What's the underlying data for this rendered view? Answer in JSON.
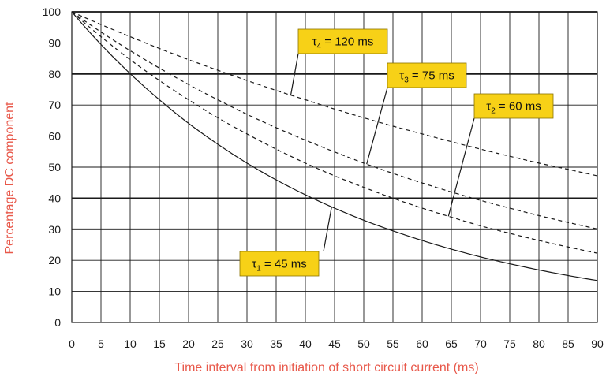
{
  "chart_data": {
    "type": "line",
    "xlabel": "Time interval from initiation of short circuit current (ms)",
    "ylabel": "Percentage DC component",
    "xlim": [
      0,
      90
    ],
    "ylim": [
      0,
      100
    ],
    "x_ticks": [
      0,
      5,
      10,
      15,
      20,
      25,
      30,
      35,
      40,
      45,
      50,
      55,
      60,
      65,
      70,
      75,
      80,
      85,
      90
    ],
    "y_ticks": [
      0,
      10,
      20,
      30,
      40,
      50,
      60,
      70,
      80,
      90,
      100
    ],
    "grid": true,
    "bold_gridlines_y": [
      30,
      40,
      80,
      100
    ],
    "x": [
      0,
      5,
      10,
      15,
      20,
      25,
      30,
      35,
      40,
      45,
      50,
      55,
      60,
      65,
      70,
      75,
      80,
      85,
      90
    ],
    "series": [
      {
        "name": "τ1 = 45 ms",
        "label_main": "τ",
        "label_sub": "1",
        "label_rest": " = 45 ms",
        "style": "solid",
        "values": [
          100,
          89.5,
          80.1,
          71.7,
          64.1,
          57.4,
          51.3,
          45.9,
          41.1,
          36.8,
          32.9,
          29.5,
          26.4,
          23.6,
          21.1,
          18.9,
          16.9,
          15.1,
          13.5
        ]
      },
      {
        "name": "τ2 = 60 ms",
        "label_main": "τ",
        "label_sub": "2",
        "label_rest": " = 60 ms",
        "style": "dashed",
        "values": [
          100,
          92.0,
          84.6,
          77.9,
          71.7,
          65.9,
          60.7,
          55.8,
          51.3,
          47.2,
          43.5,
          40.0,
          36.8,
          33.9,
          31.1,
          28.7,
          26.4,
          24.3,
          22.3
        ]
      },
      {
        "name": "τ3 = 75 ms",
        "label_main": "τ",
        "label_sub": "3",
        "label_rest": " = 75 ms",
        "style": "dashed",
        "values": [
          100,
          93.5,
          87.5,
          81.9,
          76.6,
          71.7,
          67.0,
          62.7,
          58.7,
          54.9,
          51.3,
          48.0,
          44.9,
          42.0,
          39.3,
          36.8,
          34.4,
          32.2,
          30.1
        ]
      },
      {
        "name": "τ4 = 120 ms",
        "label_main": "τ",
        "label_sub": "4",
        "label_rest": " = 120 ms",
        "style": "dashed",
        "values": [
          100,
          95.9,
          92.0,
          88.2,
          84.6,
          81.2,
          77.9,
          74.7,
          71.7,
          68.7,
          65.9,
          63.2,
          60.7,
          58.2,
          55.8,
          53.5,
          51.3,
          49.3,
          47.2
        ]
      }
    ],
    "annotations": {
      "callout_color": "#f7d117",
      "line_color": "#1a1a1a",
      "grid_color": "#1a1a1a"
    }
  }
}
